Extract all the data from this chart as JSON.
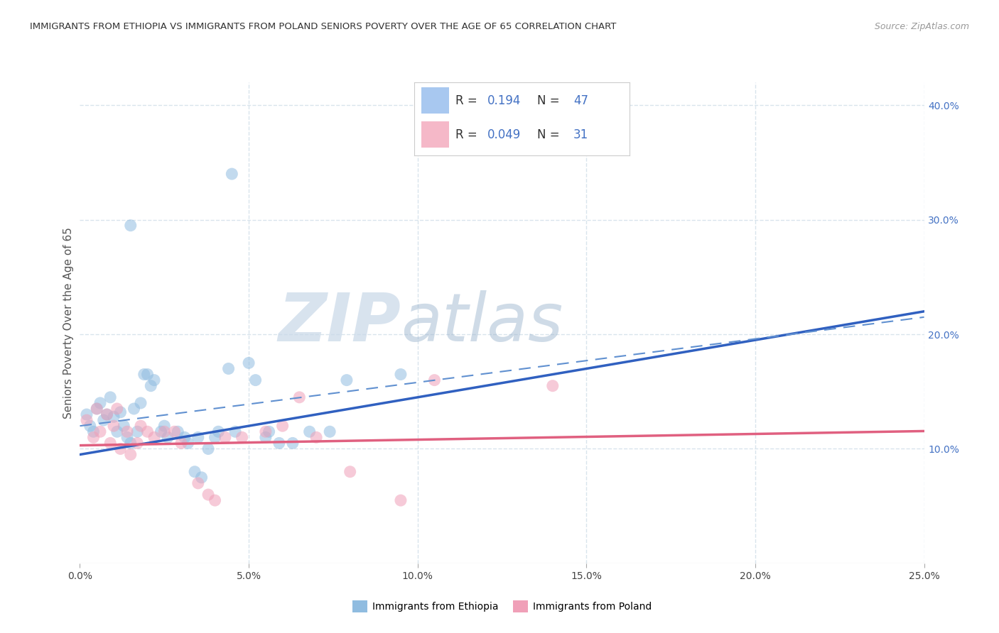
{
  "title": "IMMIGRANTS FROM ETHIOPIA VS IMMIGRANTS FROM POLAND SENIORS POVERTY OVER THE AGE OF 65 CORRELATION CHART",
  "source": "Source: ZipAtlas.com",
  "ylabel": "Seniors Poverty Over the Age of 65",
  "xlim": [
    0.0,
    25.0
  ],
  "ylim": [
    0.0,
    42.0
  ],
  "yticks_right": [
    10.0,
    20.0,
    30.0,
    40.0
  ],
  "ytick_labels_right": [
    "10.0%",
    "20.0%",
    "30.0%",
    "40.0%"
  ],
  "xticks": [
    0.0,
    5.0,
    10.0,
    15.0,
    20.0,
    25.0
  ],
  "r1": "0.194",
  "n1": "47",
  "r2": "0.049",
  "n2": "31",
  "legend_color1": "#a8c8f0",
  "legend_color2": "#f5b8c8",
  "ethiopia_scatter_color": "#90bce0",
  "poland_scatter_color": "#f0a0b8",
  "ethiopia_line_color": "#3060c0",
  "poland_line_color": "#e06080",
  "poland_line_dash": [
    6,
    4
  ],
  "watermark_zip_color": "#c8d8e8",
  "watermark_atlas_color": "#a0b8d0",
  "background_color": "#ffffff",
  "grid_color": "#d8e4ec",
  "blue_text_color": "#4472c4",
  "label_color": "#555555",
  "source_color": "#999999",
  "title_color": "#333333",
  "ethiopia_scatter": [
    [
      0.2,
      13.0
    ],
    [
      0.3,
      12.0
    ],
    [
      0.4,
      11.5
    ],
    [
      0.5,
      13.5
    ],
    [
      0.6,
      14.0
    ],
    [
      0.7,
      12.5
    ],
    [
      0.8,
      13.0
    ],
    [
      0.9,
      14.5
    ],
    [
      1.0,
      12.8
    ],
    [
      1.1,
      11.5
    ],
    [
      1.2,
      13.2
    ],
    [
      1.3,
      12.0
    ],
    [
      1.4,
      11.0
    ],
    [
      1.5,
      10.5
    ],
    [
      1.6,
      13.5
    ],
    [
      1.7,
      11.5
    ],
    [
      1.8,
      14.0
    ],
    [
      1.9,
      16.5
    ],
    [
      2.0,
      16.5
    ],
    [
      2.1,
      15.5
    ],
    [
      2.2,
      16.0
    ],
    [
      2.4,
      11.5
    ],
    [
      2.5,
      12.0
    ],
    [
      2.6,
      11.0
    ],
    [
      2.9,
      11.5
    ],
    [
      3.1,
      11.0
    ],
    [
      3.2,
      10.5
    ],
    [
      3.4,
      8.0
    ],
    [
      3.5,
      11.0
    ],
    [
      3.6,
      7.5
    ],
    [
      3.8,
      10.0
    ],
    [
      4.0,
      11.0
    ],
    [
      4.1,
      11.5
    ],
    [
      4.4,
      17.0
    ],
    [
      4.6,
      11.5
    ],
    [
      5.0,
      17.5
    ],
    [
      5.2,
      16.0
    ],
    [
      5.5,
      11.0
    ],
    [
      5.6,
      11.5
    ],
    [
      5.9,
      10.5
    ],
    [
      6.3,
      10.5
    ],
    [
      6.8,
      11.5
    ],
    [
      7.4,
      11.5
    ],
    [
      7.9,
      16.0
    ],
    [
      4.5,
      34.0
    ],
    [
      1.5,
      29.5
    ],
    [
      9.5,
      16.5
    ]
  ],
  "poland_scatter": [
    [
      0.2,
      12.5
    ],
    [
      0.4,
      11.0
    ],
    [
      0.5,
      13.5
    ],
    [
      0.6,
      11.5
    ],
    [
      0.8,
      13.0
    ],
    [
      0.9,
      10.5
    ],
    [
      1.0,
      12.0
    ],
    [
      1.1,
      13.5
    ],
    [
      1.2,
      10.0
    ],
    [
      1.4,
      11.5
    ],
    [
      1.5,
      9.5
    ],
    [
      1.7,
      10.5
    ],
    [
      1.8,
      12.0
    ],
    [
      2.0,
      11.5
    ],
    [
      2.2,
      11.0
    ],
    [
      2.5,
      11.5
    ],
    [
      2.8,
      11.5
    ],
    [
      3.0,
      10.5
    ],
    [
      3.5,
      7.0
    ],
    [
      3.8,
      6.0
    ],
    [
      4.0,
      5.5
    ],
    [
      4.3,
      11.0
    ],
    [
      4.8,
      11.0
    ],
    [
      5.5,
      11.5
    ],
    [
      6.0,
      12.0
    ],
    [
      6.5,
      14.5
    ],
    [
      7.0,
      11.0
    ],
    [
      8.0,
      8.0
    ],
    [
      9.5,
      5.5
    ],
    [
      10.5,
      16.0
    ],
    [
      14.0,
      15.5
    ]
  ]
}
